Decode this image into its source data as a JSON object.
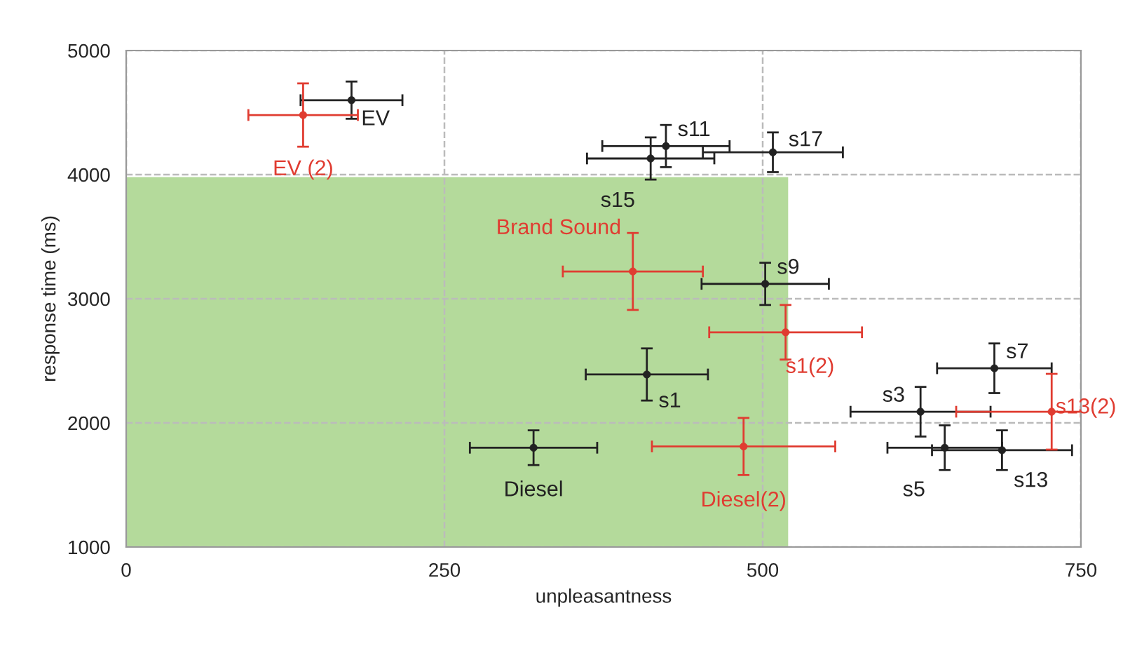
{
  "chart_data": {
    "type": "scatter",
    "xlabel": "unpleasantness",
    "ylabel": "response time (ms)",
    "xlim": [
      0,
      750
    ],
    "ylim": [
      1000,
      5000
    ],
    "xticks": [
      0,
      250,
      500,
      750
    ],
    "yticks": [
      1000,
      2000,
      3000,
      4000,
      5000
    ],
    "grid": true,
    "line_style": "dashed",
    "series": [
      {
        "type": "area",
        "color": "#8cc665",
        "x": [
          0,
          520
        ],
        "values": [
          3980,
          3980
        ]
      },
      {
        "color": "#222222",
        "marker": "circle",
        "x": [
          177,
          424,
          412,
          508,
          502,
          409,
          320,
          682,
          624,
          643,
          688
        ],
        "values": [
          4600,
          4230,
          4130,
          4180,
          3120,
          2390,
          1800,
          2440,
          2090,
          1800,
          1780
        ],
        "xerrors": [
          40,
          50,
          50,
          55,
          50,
          48,
          50,
          45,
          55,
          45,
          55
        ],
        "errors": [
          150,
          170,
          170,
          160,
          170,
          210,
          140,
          200,
          200,
          180,
          160
        ]
      },
      {
        "color": "#e03c31",
        "marker": "circle",
        "x": [
          139,
          398,
          518,
          485,
          727
        ],
        "values": [
          4480,
          3220,
          2730,
          1810,
          2090
        ],
        "xerrors": [
          43,
          55,
          60,
          72,
          [
            652,
            750
          ]
        ],
        "errors": [
          255,
          310,
          220,
          230,
          305
        ]
      }
    ],
    "annotations": [
      {
        "text": "EV",
        "x": 177,
        "y": 4600
      },
      {
        "text": "EV (2)",
        "x": 139,
        "y": 4480
      },
      {
        "text": "s11",
        "x": 424,
        "y": 4230
      },
      {
        "text": "s15",
        "x": 412,
        "y": 4130
      },
      {
        "text": "s17",
        "x": 508,
        "y": 4180
      },
      {
        "text": "Brand Sound",
        "x": 398,
        "y": 3220
      },
      {
        "text": "s9",
        "x": 502,
        "y": 3120
      },
      {
        "text": "s1(2)",
        "x": 518,
        "y": 2730
      },
      {
        "text": "s1",
        "x": 409,
        "y": 2390
      },
      {
        "text": "Diesel",
        "x": 320,
        "y": 1800
      },
      {
        "text": "Diesel(2)",
        "x": 485,
        "y": 1810
      },
      {
        "text": "s7",
        "x": 682,
        "y": 2440
      },
      {
        "text": "s3",
        "x": 624,
        "y": 2090
      },
      {
        "text": "s13(2)",
        "x": 727,
        "y": 2090
      },
      {
        "text": "s5",
        "x": 643,
        "y": 1800
      },
      {
        "text": "s13",
        "x": 688,
        "y": 1780
      }
    ]
  }
}
